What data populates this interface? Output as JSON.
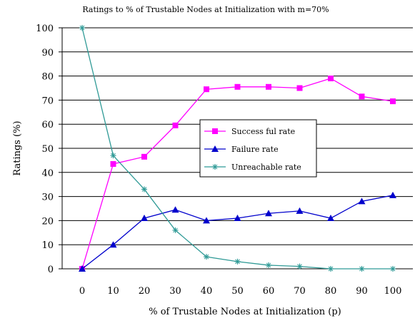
{
  "chart_data": {
    "type": "line",
    "title": "Ratings to % of Trustable Nodes at Initialization with m=70%",
    "xlabel": "% of Trustable Nodes at Initialization (p)",
    "ylabel": "Ratings (%)",
    "x": [
      0,
      10,
      20,
      30,
      40,
      50,
      60,
      70,
      80,
      90,
      100
    ],
    "xlim": [
      0,
      100
    ],
    "ylim": [
      0,
      100
    ],
    "yticks": [
      0,
      10,
      20,
      30,
      40,
      50,
      60,
      70,
      80,
      90,
      100
    ],
    "grid": "horizontal",
    "legend_position": "center",
    "series": [
      {
        "name": "Success ful rate",
        "color": "#ff00ff",
        "marker": "square",
        "values": [
          0,
          43.5,
          46.5,
          59.5,
          74.5,
          75.5,
          75.5,
          75,
          79,
          71.5,
          69.5
        ]
      },
      {
        "name": "Failure rate",
        "color": "#0000cc",
        "marker": "triangle",
        "values": [
          0,
          10,
          21,
          24.5,
          20,
          21,
          23,
          24,
          21,
          28,
          30.5
        ]
      },
      {
        "name": "Unreachable rate",
        "color": "#2f9a96",
        "marker": "star",
        "values": [
          100,
          47,
          33,
          16,
          5,
          3,
          1.5,
          1,
          0,
          0,
          0
        ]
      }
    ]
  }
}
